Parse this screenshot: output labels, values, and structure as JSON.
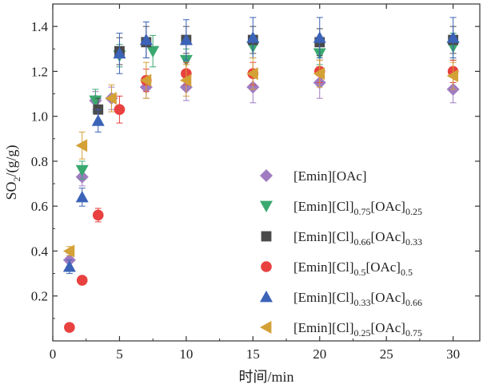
{
  "chart_data": {
    "type": "scatter",
    "xlabel": "时间/min",
    "ylabel": {
      "text": "SO",
      "sub": "2",
      "rest": "/(g/g)"
    },
    "xlim": [
      0,
      32
    ],
    "ylim": [
      0,
      1.5
    ],
    "xticks": [
      0,
      5,
      10,
      15,
      20,
      25,
      30
    ],
    "yticks": [
      0.2,
      0.4,
      0.6,
      0.8,
      1.0,
      1.2,
      1.4
    ],
    "ytick_labels": [
      "0.2",
      "0.4",
      "0.6",
      "0.8",
      "1.0",
      "1.2",
      "1.4"
    ],
    "legend_position": "right",
    "grid": false,
    "series": [
      {
        "name_parts": [
          {
            "t": "[Emin][OAc]"
          }
        ],
        "marker": "diamond",
        "color": "#9f7bc2",
        "points": [
          [
            1.25,
            0.36
          ],
          [
            2.2,
            0.73
          ],
          [
            3.2,
            1.07
          ],
          [
            4.4,
            1.08
          ],
          [
            7,
            1.13
          ],
          [
            10,
            1.13
          ],
          [
            15,
            1.13
          ],
          [
            20,
            1.15
          ],
          [
            30,
            1.12
          ]
        ],
        "err": [
          0.03,
          0.04,
          0.04,
          0.05,
          0.05,
          0.06,
          0.07,
          0.07,
          0.06
        ]
      },
      {
        "name_parts": [
          {
            "t": "[Emin][Cl]"
          },
          {
            "t": "0.75",
            "sub": true
          },
          {
            "t": "[OAc]"
          },
          {
            "t": "0.25",
            "sub": true
          }
        ],
        "marker": "triangle-down",
        "color": "#3aa970",
        "points": [
          [
            2.2,
            0.76
          ],
          [
            3.2,
            1.07
          ],
          [
            5,
            1.27
          ],
          [
            7.5,
            1.29
          ],
          [
            10,
            1.25
          ],
          [
            15,
            1.31
          ],
          [
            20,
            1.28
          ],
          [
            30,
            1.31
          ]
        ],
        "err": [
          0.04,
          0.05,
          0.05,
          0.07,
          0.05,
          0.05,
          0.05,
          0.06
        ]
      },
      {
        "name_parts": [
          {
            "t": "[Emin][Cl]"
          },
          {
            "t": "0.66",
            "sub": true
          },
          {
            "t": "[OAc]"
          },
          {
            "t": "0.33",
            "sub": true
          }
        ],
        "marker": "square",
        "color": "#4a4a4a",
        "points": [
          [
            3.4,
            1.03
          ],
          [
            5,
            1.29
          ],
          [
            7,
            1.33
          ],
          [
            10,
            1.34
          ],
          [
            15,
            1.34
          ],
          [
            20,
            1.33
          ],
          [
            30,
            1.34
          ]
        ],
        "err": [
          0.05,
          0.06,
          0.07,
          0.06,
          0.06,
          0.06,
          0.06
        ]
      },
      {
        "name_parts": [
          {
            "t": "[Emin][Cl]"
          },
          {
            "t": "0.5",
            "sub": true
          },
          {
            "t": "[OAc]"
          },
          {
            "t": "0.5",
            "sub": true
          }
        ],
        "marker": "circle",
        "color": "#e8413f",
        "points": [
          [
            1.25,
            0.06
          ],
          [
            2.2,
            0.27
          ],
          [
            3.4,
            0.56
          ],
          [
            5,
            1.03
          ],
          [
            7,
            1.16
          ],
          [
            10,
            1.19
          ],
          [
            15,
            1.19
          ],
          [
            20,
            1.2
          ],
          [
            30,
            1.2
          ]
        ],
        "err": [
          0.0,
          0.01,
          0.03,
          0.06,
          0.05,
          0.05,
          0.05,
          0.05,
          0.05
        ]
      },
      {
        "name_parts": [
          {
            "t": "[Emin][Cl]"
          },
          {
            "t": "0.33",
            "sub": true
          },
          {
            "t": "[OAc]"
          },
          {
            "t": "0.66",
            "sub": true
          }
        ],
        "marker": "triangle-up",
        "color": "#3b63b7",
        "points": [
          [
            1.25,
            0.33
          ],
          [
            2.2,
            0.64
          ],
          [
            3.4,
            0.98
          ],
          [
            5,
            1.28
          ],
          [
            7,
            1.34
          ],
          [
            10,
            1.34
          ],
          [
            15,
            1.35
          ],
          [
            20,
            1.35
          ],
          [
            30,
            1.35
          ]
        ],
        "err": [
          0.03,
          0.04,
          0.05,
          0.09,
          0.08,
          0.09,
          0.09,
          0.09,
          0.09
        ]
      },
      {
        "name_parts": [
          {
            "t": "[Emin][Cl]"
          },
          {
            "t": "0.25",
            "sub": true
          },
          {
            "t": "[OAc]"
          },
          {
            "t": "0.75",
            "sub": true
          }
        ],
        "marker": "triangle-left",
        "color": "#d4a136",
        "points": [
          [
            1.25,
            0.4
          ],
          [
            2.2,
            0.87
          ],
          [
            4.4,
            1.08
          ],
          [
            7,
            1.16
          ],
          [
            10,
            1.16
          ],
          [
            15,
            1.19
          ],
          [
            20,
            1.19
          ],
          [
            30,
            1.18
          ]
        ],
        "err": [
          0.02,
          0.06,
          0.06,
          0.08,
          0.07,
          0.07,
          0.06,
          0.06
        ]
      }
    ]
  }
}
